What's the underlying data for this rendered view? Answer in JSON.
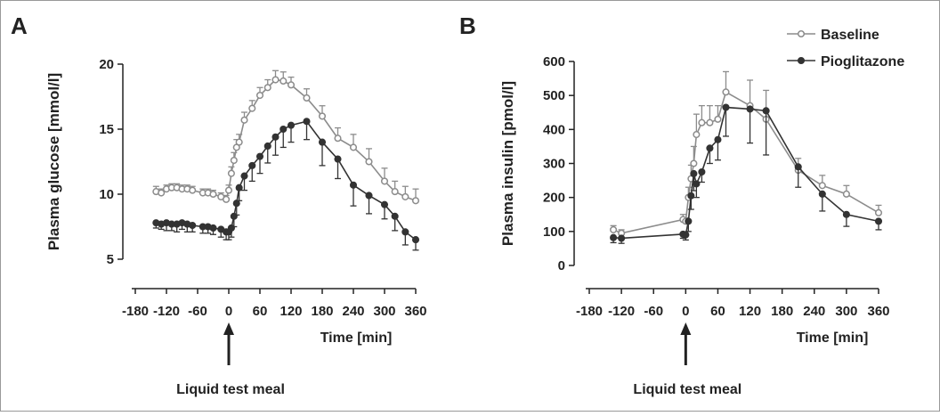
{
  "chart_data": [
    {
      "type": "line",
      "panel_label": "A",
      "y_label": "Plasma glucose [mmol/l]",
      "x_label": "Time [min]",
      "annotation": "Liquid test meal",
      "x": [
        -140,
        -130,
        -120,
        -110,
        -100,
        -90,
        -80,
        -70,
        -50,
        -40,
        -30,
        -15,
        -5,
        0,
        5,
        10,
        15,
        20,
        30,
        45,
        60,
        75,
        90,
        105,
        120,
        150,
        180,
        210,
        240,
        270,
        300,
        320,
        340,
        360
      ],
      "series": [
        {
          "color": "#8c8c8c",
          "marker_fill": "#ffffff",
          "error_direction": "up",
          "values": [
            10.2,
            10.1,
            10.4,
            10.5,
            10.5,
            10.4,
            10.4,
            10.3,
            10.1,
            10.1,
            10.0,
            9.8,
            9.6,
            10.3,
            11.6,
            12.6,
            13.6,
            14.0,
            15.7,
            16.6,
            17.6,
            18.2,
            18.8,
            18.7,
            18.4,
            17.4,
            16.0,
            14.3,
            13.6,
            12.5,
            11.0,
            10.2,
            9.8,
            9.5
          ],
          "errors": [
            0.4,
            0.3,
            0.3,
            0.3,
            0.3,
            0.3,
            0.3,
            0.3,
            0.3,
            0.3,
            0.3,
            0.3,
            0.3,
            0.4,
            0.5,
            0.6,
            0.6,
            0.6,
            0.6,
            0.6,
            0.6,
            0.6,
            0.7,
            0.7,
            0.6,
            0.7,
            0.8,
            0.8,
            1.0,
            1.0,
            1.0,
            0.8,
            0.8,
            0.9
          ]
        },
        {
          "color": "#333333",
          "marker_fill": "#333333",
          "error_direction": "down",
          "values": [
            7.8,
            7.7,
            7.8,
            7.7,
            7.7,
            7.8,
            7.7,
            7.6,
            7.5,
            7.5,
            7.4,
            7.3,
            7.1,
            7.1,
            7.4,
            8.3,
            9.3,
            10.5,
            11.4,
            12.2,
            12.9,
            13.7,
            14.4,
            15.0,
            15.3,
            15.6,
            14.0,
            12.7,
            10.7,
            9.9,
            9.2,
            8.3,
            7.1,
            6.5
          ],
          "errors": [
            0.4,
            0.4,
            0.6,
            0.5,
            0.6,
            0.5,
            0.6,
            0.5,
            0.5,
            0.5,
            0.5,
            0.6,
            0.6,
            0.6,
            0.7,
            0.8,
            0.9,
            1.0,
            1.1,
            1.2,
            1.3,
            1.3,
            1.4,
            1.4,
            1.3,
            1.4,
            1.8,
            1.5,
            1.6,
            1.4,
            1.1,
            1.1,
            1.0,
            0.8
          ]
        }
      ],
      "xlim": [
        -180,
        360
      ],
      "xticks": [
        -180,
        -120,
        -60,
        0,
        60,
        120,
        180,
        240,
        300,
        360
      ],
      "ylim": [
        5,
        20
      ],
      "yticks": [
        5,
        10,
        15,
        20
      ]
    },
    {
      "type": "line",
      "panel_label": "B",
      "y_label": "Plasma insulin [pmol/l]",
      "x_label": "Time [min]",
      "annotation": "Liquid test meal",
      "x": [
        -135,
        -120,
        -5,
        0,
        5,
        10,
        15,
        20,
        30,
        45,
        60,
        75,
        120,
        150,
        210,
        255,
        300,
        360
      ],
      "series": [
        {
          "name": "Baseline",
          "color": "#8c8c8c",
          "marker_fill": "#ffffff",
          "error_direction": "up",
          "values": [
            105,
            95,
            135,
            130,
            200,
            255,
            300,
            385,
            420,
            420,
            430,
            510,
            470,
            430,
            280,
            235,
            210,
            155
          ],
          "errors": [
            12,
            10,
            15,
            10,
            30,
            40,
            50,
            60,
            50,
            50,
            40,
            60,
            75,
            85,
            35,
            30,
            25,
            22
          ]
        },
        {
          "name": "Pioglitazone",
          "color": "#333333",
          "marker_fill": "#333333",
          "error_direction": "down",
          "values": [
            82,
            80,
            92,
            90,
            130,
            205,
            270,
            240,
            275,
            345,
            370,
            465,
            460,
            455,
            290,
            210,
            150,
            130
          ],
          "errors": [
            15,
            15,
            12,
            15,
            30,
            40,
            50,
            40,
            30,
            45,
            60,
            85,
            100,
            130,
            60,
            50,
            35,
            25
          ]
        }
      ],
      "xlim": [
        -180,
        360
      ],
      "xticks": [
        -180,
        -120,
        -60,
        0,
        60,
        120,
        180,
        240,
        300,
        360
      ],
      "ylim": [
        0,
        600
      ],
      "yticks": [
        0,
        100,
        200,
        300,
        400,
        500,
        600
      ]
    }
  ]
}
